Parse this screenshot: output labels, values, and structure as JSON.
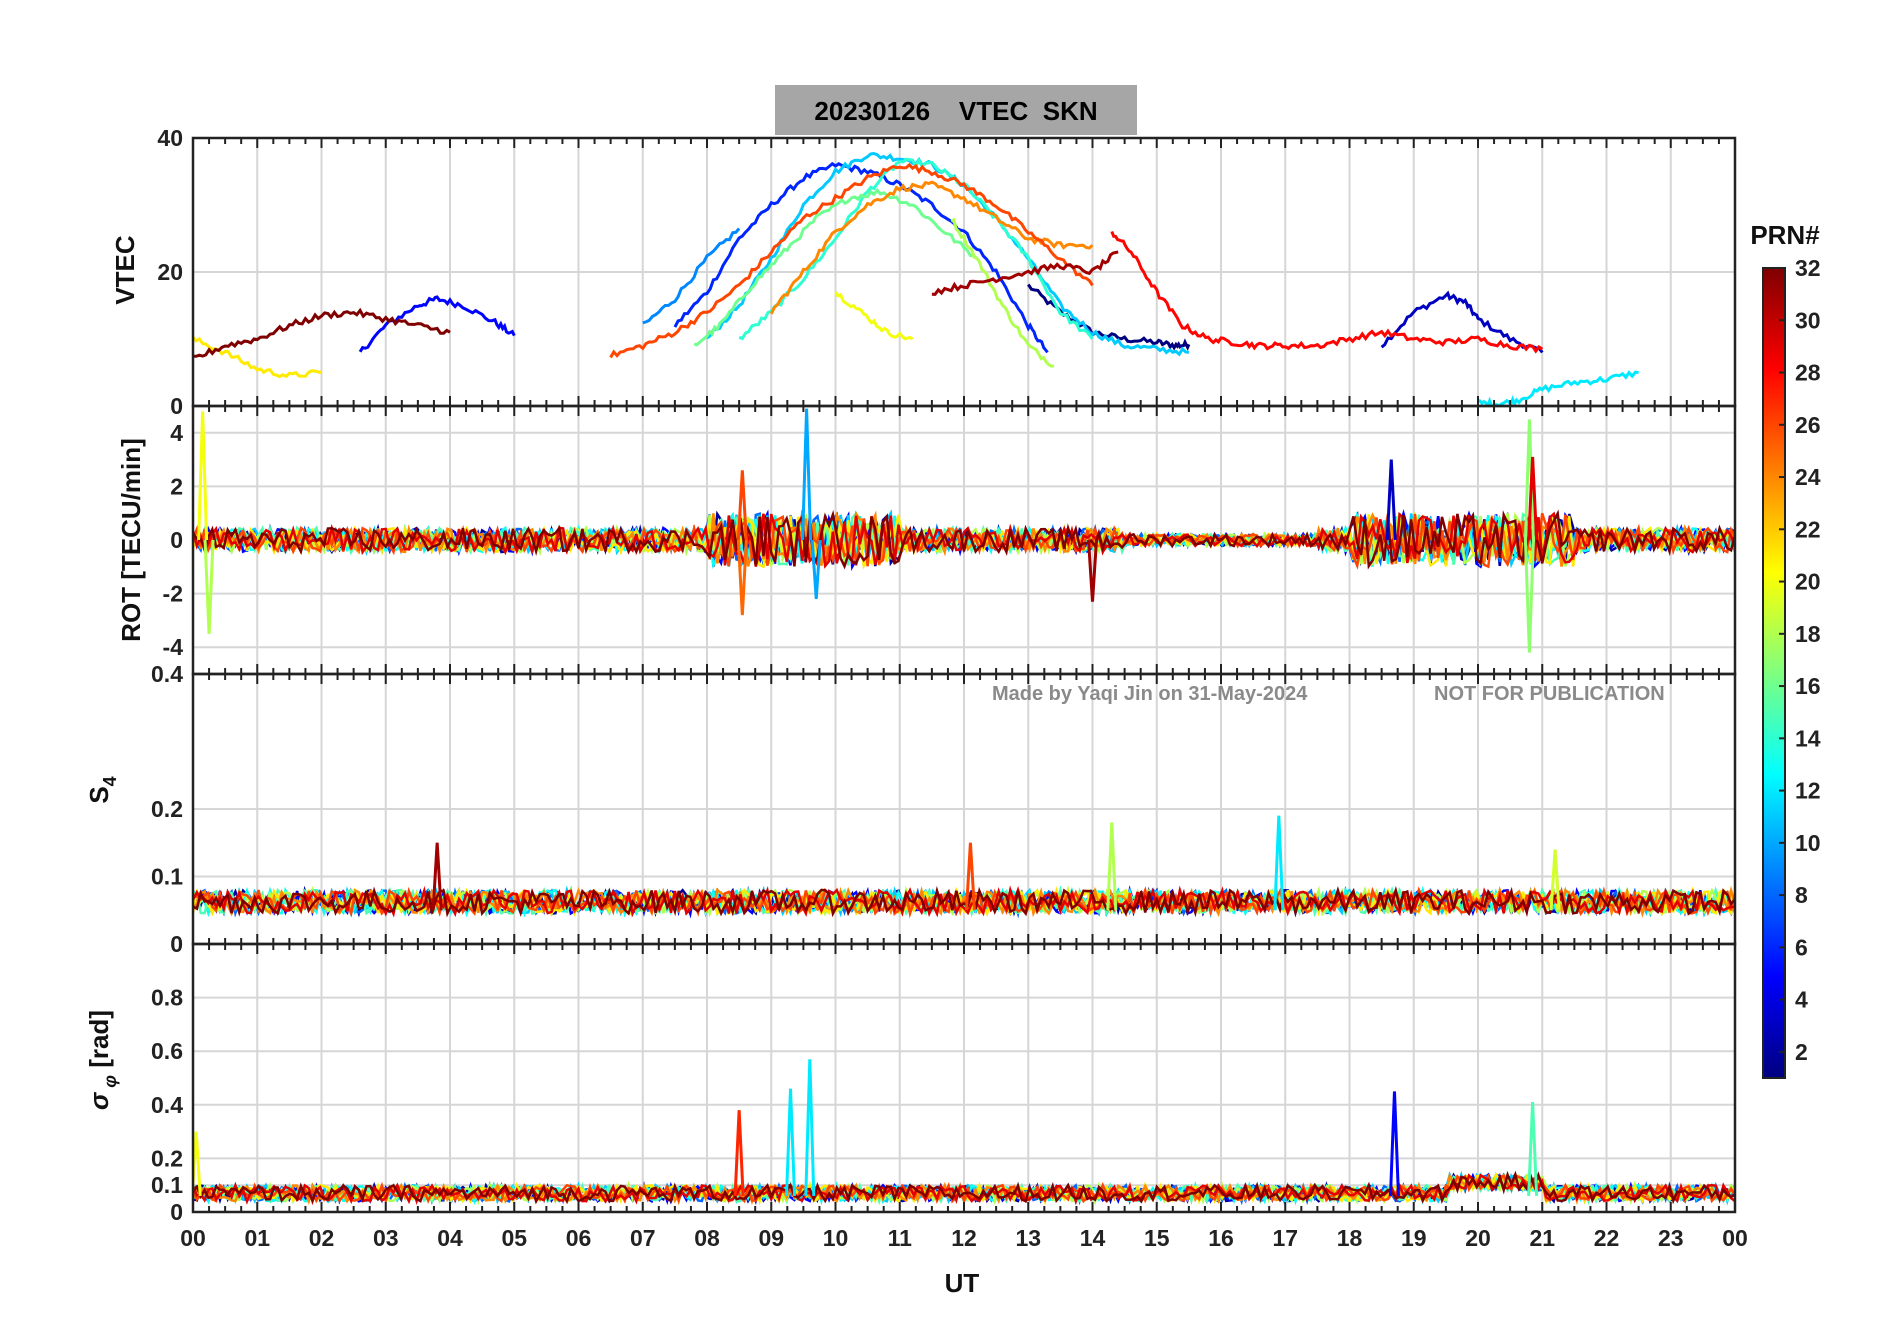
{
  "chart_data": {
    "title": "20230126    VTEC  SKN",
    "xlabel": "UT",
    "x_tick_labels": [
      "00",
      "01",
      "02",
      "03",
      "04",
      "05",
      "06",
      "07",
      "08",
      "09",
      "10",
      "11",
      "12",
      "13",
      "14",
      "15",
      "16",
      "17",
      "18",
      "19",
      "20",
      "21",
      "22",
      "23",
      "00"
    ],
    "xlim_hours": [
      0,
      24
    ],
    "grid": true,
    "watermark": {
      "left": "Made by Yaqi Jin on 31-May-2024",
      "right": "NOT FOR PUBLICATION"
    },
    "colorbar": {
      "label": "PRN#",
      "range": [
        1,
        32
      ],
      "tick_labels": [
        "2",
        "4",
        "6",
        "8",
        "10",
        "12",
        "14",
        "16",
        "18",
        "20",
        "22",
        "24",
        "26",
        "28",
        "30",
        "32"
      ],
      "colormap": "jet",
      "colormap_stops": [
        "#00007f",
        "#0000ff",
        "#007fff",
        "#00ffff",
        "#7fff7f",
        "#ffff00",
        "#ff7f00",
        "#ff0000",
        "#7f0000"
      ]
    },
    "panels": [
      {
        "name": "vtec",
        "type": "line",
        "ylabel": "VTEC",
        "ylim": [
          0,
          40
        ],
        "y_ticks": [
          0,
          20,
          40
        ],
        "y_tick_labels": [
          "0",
          "20",
          "40"
        ],
        "series": [
          {
            "prn": 1,
            "x": [
              13.0,
              13.5,
              14.0,
              14.5,
              15.0,
              15.3,
              15.5
            ],
            "y": [
              18.0,
              14.0,
              11.0,
              10.0,
              9.5,
              9.0,
              9.2
            ]
          },
          {
            "prn": 3,
            "x": [
              18.5,
              19.0,
              19.5,
              19.8,
              20.0,
              20.5,
              21.0
            ],
            "y": [
              9.0,
              14.0,
              16.5,
              15.5,
              13.0,
              10.0,
              8.0
            ]
          },
          {
            "prn": 5,
            "x": [
              2.6,
              3.0,
              3.5,
              3.8,
              4.2,
              4.7,
              5.0
            ],
            "y": [
              8.0,
              12.0,
              15.0,
              16.0,
              15.0,
              12.5,
              10.5
            ]
          },
          {
            "prn": 6,
            "x": [
              7.5,
              8.0,
              8.5,
              9.0,
              9.5,
              10.0,
              10.5,
              11.0,
              11.5,
              12.0,
              12.5,
              13.0,
              13.3
            ],
            "y": [
              12.0,
              17.0,
              25.0,
              30.0,
              34.0,
              36.0,
              35.0,
              33.0,
              30.0,
              26.0,
              20.0,
              12.0,
              8.0
            ]
          },
          {
            "prn": 9,
            "x": [
              7.0,
              7.5,
              8.0,
              8.5
            ],
            "y": [
              12.0,
              16.0,
              22.0,
              26.5
            ]
          },
          {
            "prn": 11,
            "x": [
              8.0,
              8.5,
              9.0,
              9.5,
              10.0,
              10.5,
              11.0,
              11.5,
              12.0,
              12.5,
              13.0,
              13.5,
              14.0,
              14.5,
              15.0,
              15.5
            ],
            "y": [
              10.0,
              15.0,
              22.0,
              30.0,
              35.0,
              37.5,
              37.0,
              36.0,
              33.0,
              28.0,
              22.0,
              15.0,
              11.0,
              9.0,
              8.5,
              8.0
            ]
          },
          {
            "prn": 12,
            "x": [
              20.0,
              20.3,
              20.6,
              21.0,
              21.5,
              22.0,
              22.5
            ],
            "y": [
              0.5,
              0.3,
              0.8,
              2.5,
              3.5,
              4.0,
              5.0
            ]
          },
          {
            "prn": 14,
            "x": [
              8.5,
              9.0,
              9.5,
              10.0,
              10.5,
              11.0,
              11.5,
              12.0,
              12.5,
              13.0,
              13.5,
              14.0
            ],
            "y": [
              10.0,
              14.0,
              19.0,
              25.0,
              32.0,
              36.5,
              36.0,
              33.0,
              28.0,
              22.0,
              14.0,
              10.0
            ]
          },
          {
            "prn": 16,
            "x": [
              7.8,
              8.2,
              8.7,
              9.2,
              9.7,
              10.2,
              10.7,
              11.2,
              11.7,
              12.2
            ],
            "y": [
              9.0,
              12.0,
              18.0,
              23.0,
              28.0,
              31.0,
              32.0,
              30.0,
              26.0,
              22.0
            ]
          },
          {
            "prn": 18,
            "x": [
              11.8,
              12.2,
              12.6,
              13.0,
              13.4
            ],
            "y": [
              28.0,
              22.0,
              15.0,
              9.0,
              6.0
            ]
          },
          {
            "prn": 20,
            "x": [
              10.0,
              10.4,
              10.8,
              11.2
            ],
            "y": [
              17.0,
              14.0,
              11.0,
              10.0
            ]
          },
          {
            "prn": 21,
            "x": [
              0.0,
              0.5,
              1.0,
              1.5,
              2.0
            ],
            "y": [
              10.0,
              8.0,
              5.5,
              4.5,
              5.0
            ]
          },
          {
            "prn": 24,
            "x": [
              9.0,
              9.5,
              10.0,
              10.5,
              11.0,
              11.5,
              12.0,
              12.5,
              13.0,
              13.5,
              14.0
            ],
            "y": [
              14.0,
              20.0,
              26.0,
              30.0,
              32.5,
              33.0,
              31.0,
              28.0,
              25.0,
              24.0,
              24.0
            ]
          },
          {
            "prn": 26,
            "x": [
              6.5,
              7.0,
              7.5,
              8.0,
              8.5,
              9.0,
              9.5,
              10.0,
              10.5,
              11.0,
              11.5,
              12.0,
              12.5,
              13.0,
              13.5,
              14.0
            ],
            "y": [
              7.5,
              9.0,
              11.0,
              14.0,
              18.0,
              23.0,
              28.0,
              31.0,
              34.0,
              36.0,
              35.0,
              33.0,
              30.0,
              26.0,
              22.0,
              18.0
            ]
          },
          {
            "prn": 28,
            "x": [
              14.3,
              14.6,
              15.0,
              15.4,
              15.8,
              16.2,
              16.6,
              17.0,
              17.5,
              18.0,
              18.5,
              19.0,
              19.5,
              20.0,
              20.5,
              21.0
            ],
            "y": [
              26.0,
              23.0,
              17.0,
              12.0,
              10.0,
              9.5,
              9.0,
              9.0,
              9.0,
              10.0,
              11.0,
              10.0,
              9.5,
              10.0,
              9.0,
              8.5
            ]
          },
          {
            "prn": 31,
            "x": [
              11.5,
              12.0,
              12.5,
              13.0,
              13.5,
              14.0,
              14.4
            ],
            "y": [
              17.0,
              18.0,
              19.0,
              20.0,
              21.0,
              20.0,
              23.0
            ]
          },
          {
            "prn": 32,
            "x": [
              0.0,
              0.5,
              1.0,
              1.5,
              2.0,
              2.5,
              3.0,
              3.5,
              4.0
            ],
            "y": [
              7.0,
              9.0,
              10.0,
              12.0,
              13.5,
              14.0,
              13.0,
              12.0,
              11.0
            ]
          }
        ]
      },
      {
        "name": "rot",
        "type": "line",
        "ylabel": "ROT [TECU/min]",
        "ylim": [
          -5,
          5
        ],
        "y_ticks": [
          -4,
          -2,
          0,
          2,
          4
        ],
        "y_tick_labels": [
          "-4",
          "-2",
          "0",
          "2",
          "4"
        ],
        "spikes": [
          {
            "prn": 10,
            "x": 9.55,
            "y": 4.9
          },
          {
            "prn": 10,
            "x": 9.7,
            "y": -2.2
          },
          {
            "prn": 26,
            "x": 8.55,
            "y": 2.6
          },
          {
            "prn": 25,
            "x": 8.55,
            "y": -2.8
          },
          {
            "prn": 20,
            "x": 0.15,
            "y": 4.8
          },
          {
            "prn": 18,
            "x": 0.25,
            "y": -3.5
          },
          {
            "prn": 17,
            "x": 20.8,
            "y": 4.5
          },
          {
            "prn": 17,
            "x": 20.8,
            "y": -4.2
          },
          {
            "prn": 3,
            "x": 18.65,
            "y": 3.0
          },
          {
            "prn": 31,
            "x": 14.0,
            "y": -2.3
          },
          {
            "prn": 29,
            "x": 20.85,
            "y": 3.1
          }
        ]
      },
      {
        "name": "s4",
        "type": "line",
        "ylabel": "S4",
        "ylim": [
          0,
          0.4
        ],
        "y_ticks": [
          0,
          0.1,
          0.2,
          0.4
        ],
        "y_tick_labels": [
          "0",
          "0.1",
          "0.2",
          "0.4"
        ],
        "spikes": [
          {
            "prn": 31,
            "x": 3.8,
            "y": 0.15
          },
          {
            "prn": 26,
            "x": 12.1,
            "y": 0.15
          },
          {
            "prn": 18,
            "x": 14.3,
            "y": 0.18
          },
          {
            "prn": 12,
            "x": 16.9,
            "y": 0.19
          },
          {
            "prn": 19,
            "x": 21.2,
            "y": 0.14
          }
        ]
      },
      {
        "name": "sigma_phi",
        "type": "line",
        "ylabel": "σ_φ [rad]",
        "ylim": [
          0,
          1.0
        ],
        "y_ticks": [
          0,
          0.1,
          0.2,
          0.4,
          0.6,
          0.8
        ],
        "y_tick_labels": [
          "0",
          "0.1",
          "0.2",
          "0.4",
          "0.6",
          "0.8"
        ],
        "spikes": [
          {
            "prn": 27,
            "x": 8.5,
            "y": 0.38
          },
          {
            "prn": 12,
            "x": 9.6,
            "y": 0.57
          },
          {
            "prn": 12,
            "x": 9.3,
            "y": 0.46
          },
          {
            "prn": 5,
            "x": 18.7,
            "y": 0.45
          },
          {
            "prn": 15,
            "x": 20.85,
            "y": 0.41
          },
          {
            "prn": 20,
            "x": 0.05,
            "y": 0.3
          }
        ]
      }
    ]
  }
}
